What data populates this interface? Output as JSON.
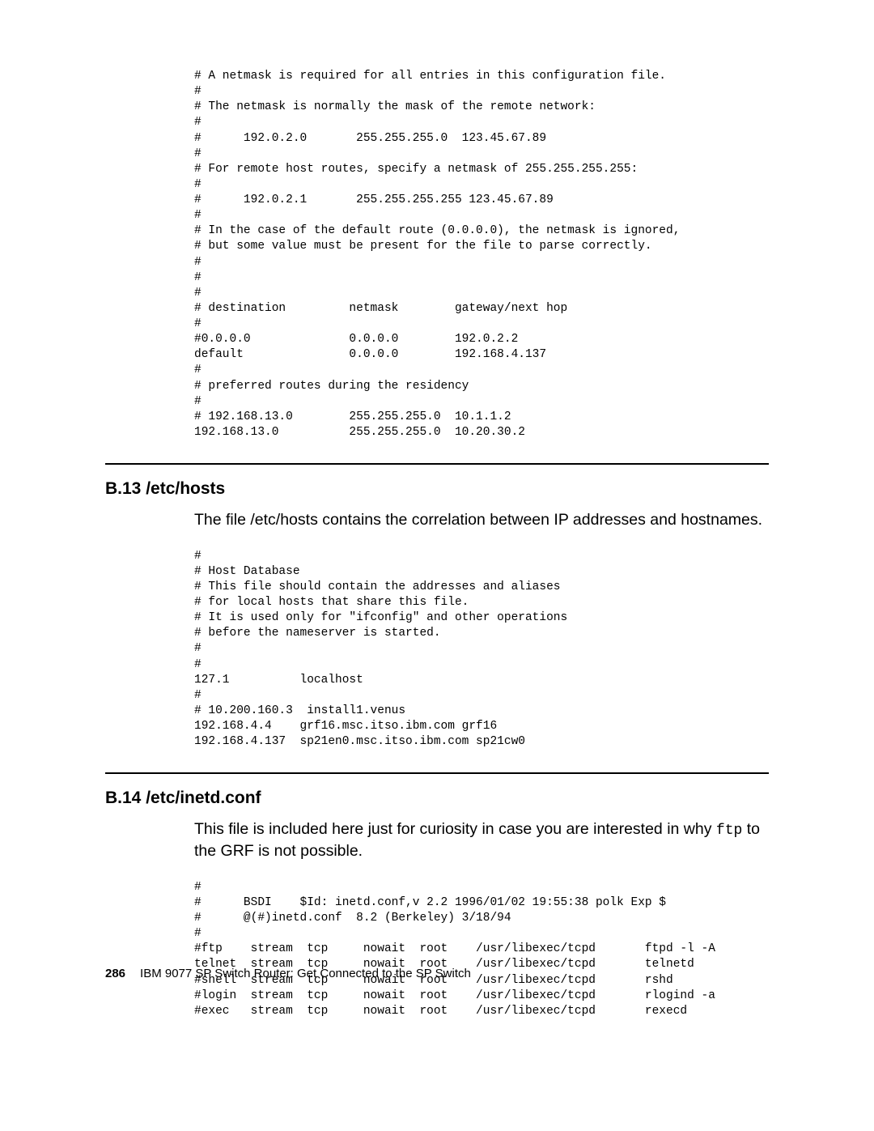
{
  "codeblocks": {
    "routes": "# A netmask is required for all entries in this configuration file.\n#\n# The netmask is normally the mask of the remote network:\n#\n#      192.0.2.0       255.255.255.0  123.45.67.89\n#\n# For remote host routes, specify a netmask of 255.255.255.255:\n#\n#      192.0.2.1       255.255.255.255 123.45.67.89\n#\n# In the case of the default route (0.0.0.0), the netmask is ignored,\n# but some value must be present for the file to parse correctly.\n#\n#\n#\n# destination         netmask        gateway/next hop\n#\n#0.0.0.0              0.0.0.0        192.0.2.2\ndefault               0.0.0.0        192.168.4.137\n#\n# preferred routes during the residency\n#\n# 192.168.13.0        255.255.255.0  10.1.1.2\n192.168.13.0          255.255.255.0  10.20.30.2",
    "hosts": "#\n# Host Database\n# This file should contain the addresses and aliases\n# for local hosts that share this file.\n# It is used only for \"ifconfig\" and other operations\n# before the nameserver is started.\n#\n#\n127.1          localhost\n#\n# 10.200.160.3  install1.venus\n192.168.4.4    grf16.msc.itso.ibm.com grf16\n192.168.4.137  sp21en0.msc.itso.ibm.com sp21cw0",
    "inetd": "#\n#      BSDI    $Id: inetd.conf,v 2.2 1996/01/02 19:55:38 polk Exp $\n#      @(#)inetd.conf  8.2 (Berkeley) 3/18/94\n#\n#ftp    stream  tcp     nowait  root    /usr/libexec/tcpd       ftpd -l -A\ntelnet  stream  tcp     nowait  root    /usr/libexec/tcpd       telnetd\n#shell  stream  tcp     nowait  root    /usr/libexec/tcpd       rshd\n#login  stream  tcp     nowait  root    /usr/libexec/tcpd       rlogind -a\n#exec   stream  tcp     nowait  root    /usr/libexec/tcpd       rexecd"
  },
  "sections": {
    "b13": {
      "heading": "B.13  /etc/hosts",
      "body": "The file /etc/hosts contains the correlation between IP addresses and hostnames."
    },
    "b14": {
      "heading": "B.14  /etc/inetd.conf",
      "body_prefix": "This file is included here just for curiosity in case you are interested in why ",
      "body_mono": "ftp",
      "body_suffix": " to the GRF is not possible."
    }
  },
  "footer": {
    "page": "286",
    "title": "IBM 9077 SP Switch Router: Get Connected to the SP Switch"
  }
}
